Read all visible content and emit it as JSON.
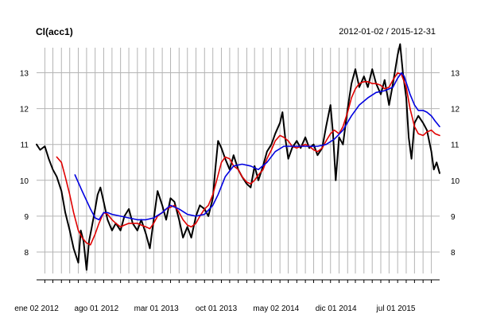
{
  "chart_data": {
    "type": "line",
    "title": "Cl(acc1)",
    "subtitle": "2012-01-02 / 2015-12-31",
    "x_labels": [
      "ene 02 2012",
      "ago 01 2012",
      "mar 01 2013",
      "oct 01 2013",
      "may 02 2014",
      "dic 01 2014",
      "jul 01 2015"
    ],
    "y_ticks": [
      8,
      9,
      10,
      11,
      12,
      13
    ],
    "ylim": [
      7.4,
      13.7
    ],
    "xlim": [
      "2012-01-02",
      "2015-12-31"
    ],
    "grid": true,
    "series": [
      {
        "key": "price",
        "color": "#000000",
        "points": [
          [
            "2012-01-02",
            11.0
          ],
          [
            "2012-01-15",
            10.85
          ],
          [
            "2012-02-01",
            10.95
          ],
          [
            "2012-02-15",
            10.6
          ],
          [
            "2012-03-01",
            10.3
          ],
          [
            "2012-03-15",
            10.1
          ],
          [
            "2012-04-01",
            9.7
          ],
          [
            "2012-04-15",
            9.1
          ],
          [
            "2012-05-01",
            8.6
          ],
          [
            "2012-05-15",
            8.1
          ],
          [
            "2012-06-01",
            7.7
          ],
          [
            "2012-06-10",
            8.6
          ],
          [
            "2012-06-20",
            8.3
          ],
          [
            "2012-07-01",
            7.5
          ],
          [
            "2012-07-10",
            8.3
          ],
          [
            "2012-07-20",
            8.7
          ],
          [
            "2012-08-01",
            9.2
          ],
          [
            "2012-08-10",
            9.6
          ],
          [
            "2012-08-20",
            9.8
          ],
          [
            "2012-09-01",
            9.4
          ],
          [
            "2012-09-15",
            8.9
          ],
          [
            "2012-10-01",
            8.6
          ],
          [
            "2012-10-15",
            8.8
          ],
          [
            "2012-11-01",
            8.6
          ],
          [
            "2012-11-15",
            9.0
          ],
          [
            "2012-12-01",
            9.2
          ],
          [
            "2012-12-15",
            8.8
          ],
          [
            "2013-01-01",
            8.6
          ],
          [
            "2013-01-15",
            8.9
          ],
          [
            "2013-02-01",
            8.5
          ],
          [
            "2013-02-15",
            8.1
          ],
          [
            "2013-03-01",
            8.9
          ],
          [
            "2013-03-15",
            9.7
          ],
          [
            "2013-04-01",
            9.3
          ],
          [
            "2013-04-15",
            8.9
          ],
          [
            "2013-05-01",
            9.5
          ],
          [
            "2013-05-15",
            9.4
          ],
          [
            "2013-06-01",
            8.9
          ],
          [
            "2013-06-15",
            8.4
          ],
          [
            "2013-07-01",
            8.7
          ],
          [
            "2013-07-15",
            8.4
          ],
          [
            "2013-08-01",
            9.0
          ],
          [
            "2013-08-15",
            9.3
          ],
          [
            "2013-09-01",
            9.2
          ],
          [
            "2013-09-15",
            9.0
          ],
          [
            "2013-10-01",
            9.5
          ],
          [
            "2013-10-10",
            10.3
          ],
          [
            "2013-10-20",
            11.1
          ],
          [
            "2013-11-01",
            10.9
          ],
          [
            "2013-11-15",
            10.6
          ],
          [
            "2013-12-01",
            10.3
          ],
          [
            "2013-12-15",
            10.7
          ],
          [
            "2014-01-01",
            10.3
          ],
          [
            "2014-01-15",
            10.1
          ],
          [
            "2014-02-01",
            9.9
          ],
          [
            "2014-02-15",
            9.8
          ],
          [
            "2014-03-01",
            10.4
          ],
          [
            "2014-03-15",
            10.0
          ],
          [
            "2014-04-01",
            10.4
          ],
          [
            "2014-04-15",
            10.8
          ],
          [
            "2014-05-01",
            11.0
          ],
          [
            "2014-05-15",
            11.3
          ],
          [
            "2014-06-01",
            11.6
          ],
          [
            "2014-06-10",
            11.9
          ],
          [
            "2014-06-20",
            11.2
          ],
          [
            "2014-07-01",
            10.6
          ],
          [
            "2014-07-15",
            10.9
          ],
          [
            "2014-08-01",
            11.1
          ],
          [
            "2014-08-15",
            10.9
          ],
          [
            "2014-09-01",
            11.2
          ],
          [
            "2014-09-15",
            10.9
          ],
          [
            "2014-10-01",
            11.0
          ],
          [
            "2014-10-15",
            10.7
          ],
          [
            "2014-11-01",
            10.9
          ],
          [
            "2014-11-15",
            11.5
          ],
          [
            "2014-12-01",
            12.1
          ],
          [
            "2014-12-10",
            11.3
          ],
          [
            "2014-12-20",
            10.0
          ],
          [
            "2015-01-01",
            11.2
          ],
          [
            "2015-01-15",
            11.0
          ],
          [
            "2015-02-01",
            12.0
          ],
          [
            "2015-02-15",
            12.7
          ],
          [
            "2015-03-01",
            13.1
          ],
          [
            "2015-03-15",
            12.6
          ],
          [
            "2015-04-01",
            12.9
          ],
          [
            "2015-04-15",
            12.6
          ],
          [
            "2015-05-01",
            13.1
          ],
          [
            "2015-05-15",
            12.7
          ],
          [
            "2015-06-01",
            12.4
          ],
          [
            "2015-06-15",
            12.8
          ],
          [
            "2015-07-01",
            12.1
          ],
          [
            "2015-07-15",
            12.7
          ],
          [
            "2015-08-01",
            13.5
          ],
          [
            "2015-08-10",
            13.8
          ],
          [
            "2015-08-20",
            13.0
          ],
          [
            "2015-09-01",
            12.3
          ],
          [
            "2015-09-10",
            11.2
          ],
          [
            "2015-09-20",
            10.6
          ],
          [
            "2015-10-01",
            11.6
          ],
          [
            "2015-10-15",
            11.8
          ],
          [
            "2015-11-01",
            11.6
          ],
          [
            "2015-11-15",
            11.4
          ],
          [
            "2015-12-01",
            10.8
          ],
          [
            "2015-12-10",
            10.3
          ],
          [
            "2015-12-20",
            10.5
          ],
          [
            "2015-12-31",
            10.2
          ]
        ]
      },
      {
        "key": "ma_fast",
        "color": "#e00000",
        "points": [
          [
            "2012-03-15",
            10.65
          ],
          [
            "2012-04-01",
            10.5
          ],
          [
            "2012-04-15",
            10.1
          ],
          [
            "2012-05-01",
            9.6
          ],
          [
            "2012-05-15",
            9.1
          ],
          [
            "2012-06-01",
            8.6
          ],
          [
            "2012-06-15",
            8.4
          ],
          [
            "2012-07-01",
            8.25
          ],
          [
            "2012-07-15",
            8.2
          ],
          [
            "2012-08-01",
            8.5
          ],
          [
            "2012-08-15",
            8.8
          ],
          [
            "2012-09-01",
            9.1
          ],
          [
            "2012-09-15",
            9.05
          ],
          [
            "2012-10-01",
            8.9
          ],
          [
            "2012-10-15",
            8.8
          ],
          [
            "2012-11-01",
            8.7
          ],
          [
            "2012-11-15",
            8.75
          ],
          [
            "2012-12-01",
            8.8
          ],
          [
            "2012-12-15",
            8.8
          ],
          [
            "2013-01-01",
            8.8
          ],
          [
            "2013-01-15",
            8.75
          ],
          [
            "2013-02-01",
            8.7
          ],
          [
            "2013-02-15",
            8.65
          ],
          [
            "2013-03-01",
            8.8
          ],
          [
            "2013-03-15",
            9.0
          ],
          [
            "2013-04-01",
            9.1
          ],
          [
            "2013-04-15",
            9.2
          ],
          [
            "2013-05-01",
            9.25
          ],
          [
            "2013-05-15",
            9.3
          ],
          [
            "2013-06-01",
            9.1
          ],
          [
            "2013-06-15",
            8.9
          ],
          [
            "2013-07-01",
            8.75
          ],
          [
            "2013-07-15",
            8.7
          ],
          [
            "2013-08-01",
            8.8
          ],
          [
            "2013-08-15",
            9.0
          ],
          [
            "2013-09-01",
            9.2
          ],
          [
            "2013-09-15",
            9.3
          ],
          [
            "2013-10-01",
            9.6
          ],
          [
            "2013-10-15",
            10.0
          ],
          [
            "2013-11-01",
            10.5
          ],
          [
            "2013-11-15",
            10.65
          ],
          [
            "2013-12-01",
            10.6
          ],
          [
            "2013-12-15",
            10.4
          ],
          [
            "2014-01-01",
            10.3
          ],
          [
            "2014-01-15",
            10.1
          ],
          [
            "2014-02-01",
            9.95
          ],
          [
            "2014-02-15",
            9.9
          ],
          [
            "2014-03-01",
            10.0
          ],
          [
            "2014-03-15",
            10.15
          ],
          [
            "2014-04-01",
            10.3
          ],
          [
            "2014-04-15",
            10.6
          ],
          [
            "2014-05-01",
            10.85
          ],
          [
            "2014-05-15",
            11.1
          ],
          [
            "2014-06-01",
            11.25
          ],
          [
            "2014-06-15",
            11.2
          ],
          [
            "2014-07-01",
            11.1
          ],
          [
            "2014-07-15",
            10.95
          ],
          [
            "2014-08-01",
            10.9
          ],
          [
            "2014-08-15",
            10.95
          ],
          [
            "2014-09-01",
            11.0
          ],
          [
            "2014-09-15",
            10.95
          ],
          [
            "2014-10-01",
            10.85
          ],
          [
            "2014-10-15",
            10.8
          ],
          [
            "2014-11-01",
            10.9
          ],
          [
            "2014-11-15",
            11.1
          ],
          [
            "2014-12-01",
            11.3
          ],
          [
            "2014-12-15",
            11.4
          ],
          [
            "2015-01-01",
            11.3
          ],
          [
            "2015-01-15",
            11.5
          ],
          [
            "2015-02-01",
            11.9
          ],
          [
            "2015-02-15",
            12.3
          ],
          [
            "2015-03-01",
            12.55
          ],
          [
            "2015-03-15",
            12.7
          ],
          [
            "2015-04-01",
            12.75
          ],
          [
            "2015-04-15",
            12.75
          ],
          [
            "2015-05-01",
            12.7
          ],
          [
            "2015-05-15",
            12.7
          ],
          [
            "2015-06-01",
            12.65
          ],
          [
            "2015-06-15",
            12.55
          ],
          [
            "2015-07-01",
            12.6
          ],
          [
            "2015-07-15",
            12.8
          ],
          [
            "2015-08-01",
            13.0
          ],
          [
            "2015-08-15",
            12.95
          ],
          [
            "2015-09-01",
            12.6
          ],
          [
            "2015-09-15",
            12.0
          ],
          [
            "2015-10-01",
            11.5
          ],
          [
            "2015-10-15",
            11.3
          ],
          [
            "2015-11-01",
            11.25
          ],
          [
            "2015-11-15",
            11.35
          ],
          [
            "2015-12-01",
            11.4
          ],
          [
            "2015-12-15",
            11.3
          ],
          [
            "2015-12-31",
            11.25
          ]
        ]
      },
      {
        "key": "ma_slow",
        "color": "#0000e0",
        "points": [
          [
            "2012-05-20",
            10.15
          ],
          [
            "2012-06-15",
            9.7
          ],
          [
            "2012-07-15",
            9.2
          ],
          [
            "2012-08-01",
            8.95
          ],
          [
            "2012-08-15",
            8.9
          ],
          [
            "2012-09-01",
            9.1
          ],
          [
            "2012-09-15",
            9.1
          ],
          [
            "2012-10-01",
            9.05
          ],
          [
            "2012-11-01",
            9.0
          ],
          [
            "2012-12-01",
            8.95
          ],
          [
            "2013-01-01",
            8.9
          ],
          [
            "2013-02-01",
            8.9
          ],
          [
            "2013-03-01",
            8.95
          ],
          [
            "2013-04-01",
            9.1
          ],
          [
            "2013-04-15",
            9.2
          ],
          [
            "2013-05-01",
            9.3
          ],
          [
            "2013-06-01",
            9.2
          ],
          [
            "2013-07-01",
            9.05
          ],
          [
            "2013-08-01",
            9.0
          ],
          [
            "2013-09-01",
            9.05
          ],
          [
            "2013-10-01",
            9.3
          ],
          [
            "2013-10-20",
            9.6
          ],
          [
            "2013-11-15",
            10.1
          ],
          [
            "2013-12-15",
            10.4
          ],
          [
            "2014-01-15",
            10.45
          ],
          [
            "2014-02-15",
            10.4
          ],
          [
            "2014-03-15",
            10.3
          ],
          [
            "2014-04-15",
            10.5
          ],
          [
            "2014-05-15",
            10.8
          ],
          [
            "2014-06-15",
            10.95
          ],
          [
            "2014-07-15",
            10.95
          ],
          [
            "2014-08-15",
            10.95
          ],
          [
            "2014-09-15",
            10.95
          ],
          [
            "2014-10-15",
            10.95
          ],
          [
            "2014-11-15",
            11.0
          ],
          [
            "2014-12-15",
            11.15
          ],
          [
            "2015-01-15",
            11.4
          ],
          [
            "2015-02-15",
            11.8
          ],
          [
            "2015-03-15",
            12.1
          ],
          [
            "2015-04-15",
            12.3
          ],
          [
            "2015-05-15",
            12.45
          ],
          [
            "2015-06-15",
            12.5
          ],
          [
            "2015-07-15",
            12.6
          ],
          [
            "2015-08-01",
            12.85
          ],
          [
            "2015-08-15",
            13.0
          ],
          [
            "2015-08-25",
            12.9
          ],
          [
            "2015-09-15",
            12.4
          ],
          [
            "2015-10-01",
            12.1
          ],
          [
            "2015-10-15",
            11.95
          ],
          [
            "2015-11-01",
            11.95
          ],
          [
            "2015-11-15",
            11.9
          ],
          [
            "2015-12-01",
            11.8
          ],
          [
            "2015-12-15",
            11.65
          ],
          [
            "2015-12-31",
            11.5
          ]
        ]
      }
    ]
  }
}
